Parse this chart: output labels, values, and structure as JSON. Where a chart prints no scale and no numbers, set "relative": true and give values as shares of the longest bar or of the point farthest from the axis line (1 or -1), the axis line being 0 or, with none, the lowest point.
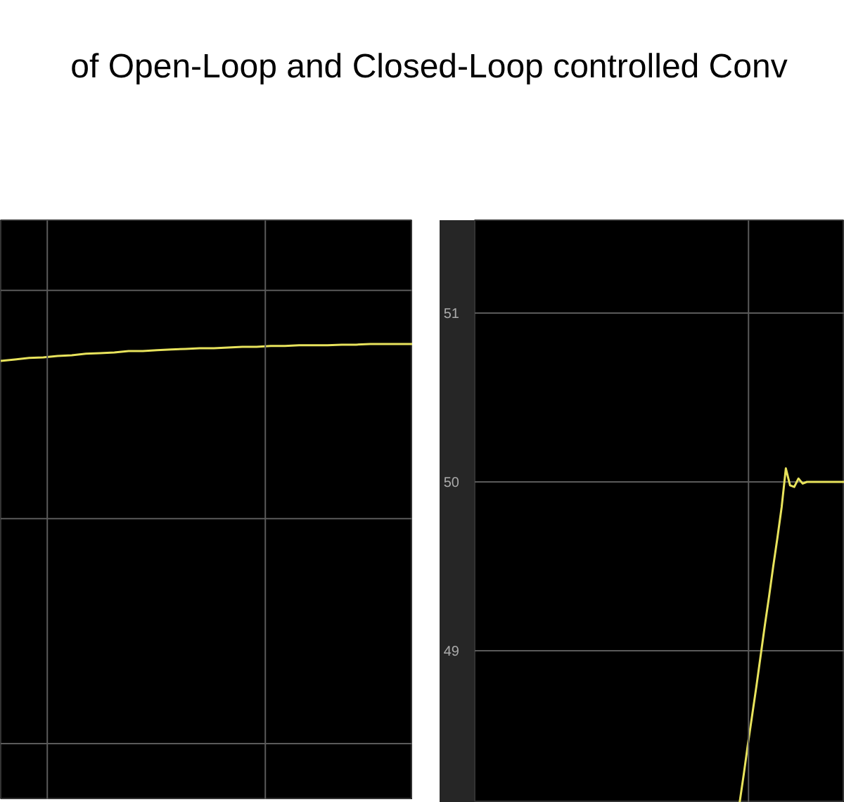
{
  "chart_data": [
    {
      "type": "line",
      "title": "of Open-Loop and Closed-Loop controlled Conv",
      "relative": true,
      "tick_labels": false,
      "grid": true,
      "color": "#e8e35c",
      "categories": [
        null,
        null,
        null,
        null,
        null,
        null,
        null,
        null,
        null,
        null,
        null,
        null,
        null,
        null,
        null,
        null,
        null,
        null,
        null,
        null,
        null,
        null,
        null,
        null,
        null,
        null,
        null,
        null,
        null,
        null
      ],
      "values": [
        0,
        0.08,
        0.17,
        0.21,
        0.29,
        0.33,
        0.42,
        0.46,
        0.5,
        0.58,
        0.58,
        0.63,
        0.67,
        0.71,
        0.75,
        0.75,
        0.79,
        0.83,
        0.83,
        0.88,
        0.88,
        0.92,
        0.92,
        0.92,
        0.96,
        0.96,
        1,
        1,
        1,
        1
      ]
    },
    {
      "type": "line",
      "tick_labels": "y",
      "grid": true,
      "color": "#e8e35c",
      "ylim": [
        48.1,
        51.55
      ],
      "yticks": [
        49,
        50,
        51
      ],
      "categories": [
        null,
        null,
        null,
        null,
        null,
        null,
        null,
        null,
        null,
        null,
        null,
        null,
        null,
        null,
        null,
        null,
        null,
        null,
        null,
        null,
        null,
        null,
        null,
        null,
        null,
        null,
        null,
        null,
        null,
        null,
        null,
        null,
        null,
        null,
        null,
        null,
        null,
        null,
        null,
        null,
        null,
        null,
        null,
        null,
        null,
        null,
        null,
        null,
        null,
        null,
        null,
        null,
        null,
        null,
        null,
        null,
        null,
        null,
        null,
        null,
        null,
        null,
        null,
        null,
        null,
        null,
        null,
        null,
        null,
        null,
        null,
        null,
        null,
        null,
        null,
        null,
        null,
        null,
        null,
        null,
        null,
        null,
        null,
        null,
        null,
        null,
        null,
        null,
        null
      ],
      "values": [
        null,
        null,
        null,
        null,
        null,
        null,
        null,
        null,
        null,
        null,
        null,
        null,
        null,
        null,
        null,
        null,
        null,
        null,
        null,
        null,
        null,
        null,
        null,
        null,
        null,
        null,
        null,
        null,
        null,
        null,
        null,
        null,
        null,
        null,
        null,
        null,
        null,
        null,
        null,
        null,
        null,
        null,
        null,
        null,
        null,
        null,
        null,
        null,
        null,
        null,
        null,
        null,
        null,
        null,
        null,
        null,
        null,
        null,
        null,
        null,
        null,
        null,
        null,
        48.1,
        48.27,
        48.45,
        48.62,
        48.79,
        48.97,
        49.15,
        49.32,
        49.5,
        49.67,
        49.85,
        50.08,
        49.98,
        49.97,
        50.02,
        49.99,
        50,
        50,
        50,
        50,
        50,
        50,
        50,
        50,
        50,
        50
      ]
    }
  ]
}
